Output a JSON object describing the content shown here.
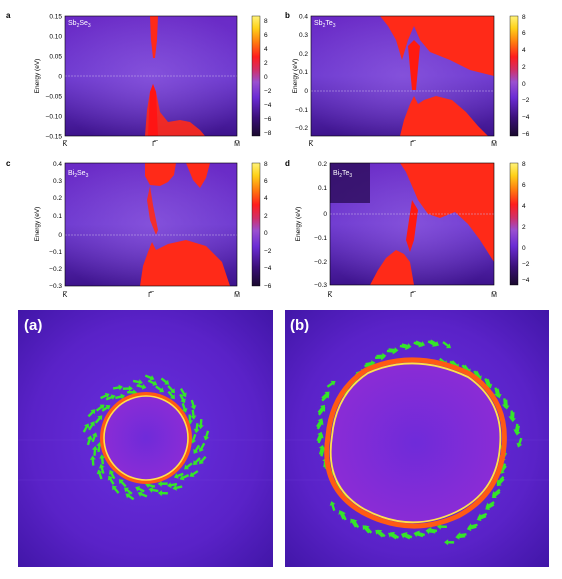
{
  "colors": {
    "panel_bg": "#5b23b4",
    "surface_state": "#ff2a18",
    "spin_arrow": "#35e52a",
    "gap_line": "#c9b6ea",
    "colormap": [
      "#1a0a2e",
      "#3a1078",
      "#6b2cd4",
      "#9a4fd0",
      "#d0306a",
      "#ff1e1e",
      "#ff7a10",
      "#ffd21a",
      "#fff27a"
    ]
  },
  "top_panels": [
    {
      "letter": "a",
      "material_base": "Sb",
      "material_sub1": "2",
      "material_mid": "Se",
      "material_sub2": "3",
      "ylabel": "Energy (eV)",
      "yticks": [
        "0.15",
        "0.10",
        "0.05",
        "0",
        "−0.05",
        "−0.10",
        "−0.15"
      ],
      "xticks": [
        "K̅",
        "Γ̅",
        "M̅"
      ],
      "cbar_ticks": [
        "8",
        "6",
        "4",
        "2",
        "0",
        "−2",
        "−4",
        "−6",
        "−8"
      ]
    },
    {
      "letter": "b",
      "material_base": "Sb",
      "material_sub1": "2",
      "material_mid": "Te",
      "material_sub2": "3",
      "ylabel": "Energy (eV)",
      "yticks": [
        "0.4",
        "0.3",
        "0.2",
        "0.1",
        "0",
        "−0.1",
        "−0.2"
      ],
      "xticks": [
        "K̅",
        "Γ̅",
        "M̅"
      ],
      "cbar_ticks": [
        "8",
        "6",
        "4",
        "2",
        "0",
        "−2",
        "−4",
        "−6"
      ]
    },
    {
      "letter": "c",
      "material_base": "Bi",
      "material_sub1": "2",
      "material_mid": "Se",
      "material_sub2": "3",
      "ylabel": "Energy (eV)",
      "yticks": [
        "0.4",
        "0.3",
        "0.2",
        "0.1",
        "0",
        "−0.1",
        "−0.2",
        "−0.3"
      ],
      "xticks": [
        "K̅",
        "Γ̅",
        "M̅"
      ],
      "cbar_ticks": [
        "8",
        "6",
        "4",
        "2",
        "0",
        "−2",
        "−4",
        "−6"
      ]
    },
    {
      "letter": "d",
      "material_base": "Bi",
      "material_sub1": "2",
      "material_mid": "Te",
      "material_sub2": "3",
      "ylabel": "Energy (eV)",
      "yticks": [
        "0.2",
        "0.1",
        "0",
        "−0.1",
        "−0.2",
        "−0.3"
      ],
      "xticks": [
        "K̅",
        "Γ̅",
        "M̅"
      ],
      "cbar_ticks": [
        "8",
        "6",
        "4",
        "2",
        "0",
        "−2",
        "−4"
      ]
    }
  ],
  "bottom_panels": [
    {
      "label": "(a)"
    },
    {
      "label": "(b)"
    }
  ]
}
